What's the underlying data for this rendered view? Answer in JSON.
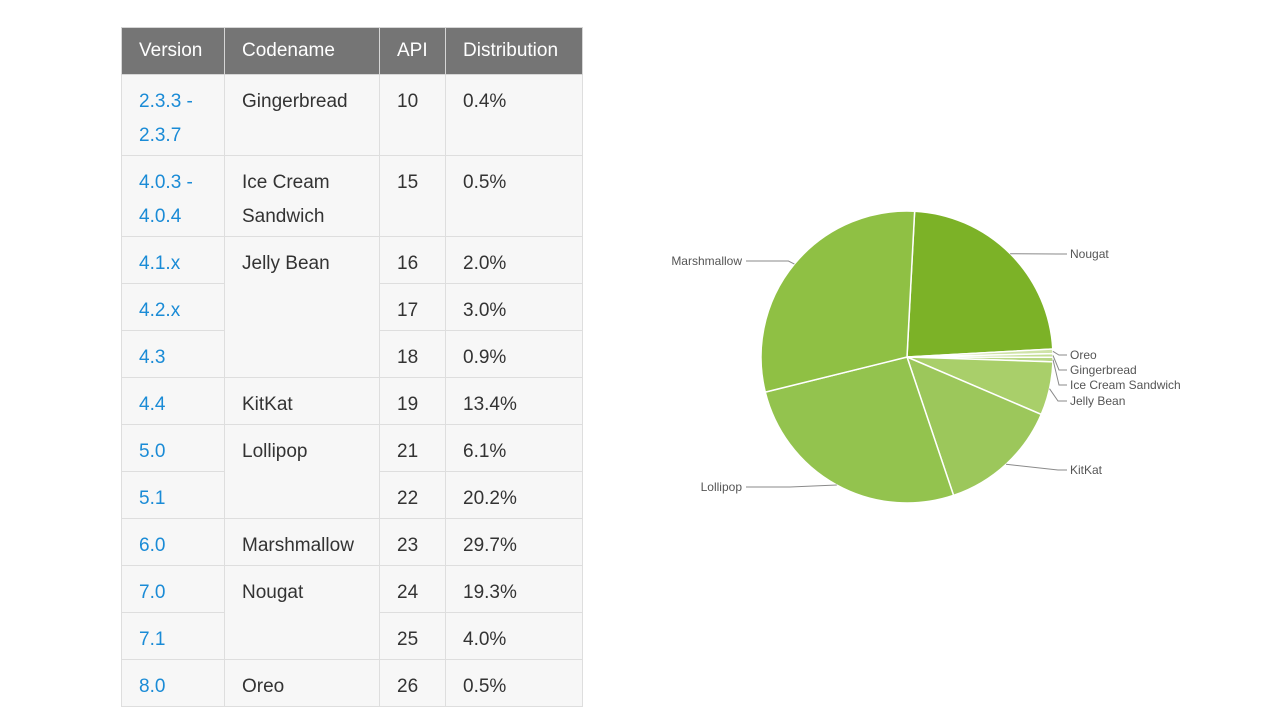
{
  "table": {
    "headers": [
      "Version",
      "Codename",
      "API",
      "Distribution"
    ],
    "rows": [
      {
        "version_lines": [
          "2.3.3 -",
          "2.3.7"
        ],
        "codename_lines": [
          "Gingerbread"
        ],
        "api": "10",
        "distribution": "0.4%"
      },
      {
        "version_lines": [
          "4.0.3 -",
          "4.0.4"
        ],
        "codename_lines": [
          "Ice Cream",
          "Sandwich"
        ],
        "api": "15",
        "distribution": "0.5%"
      },
      {
        "version_lines": [
          "4.1.x"
        ],
        "codename_lines": [
          "Jelly Bean"
        ],
        "api": "16",
        "distribution": "2.0%"
      },
      {
        "version_lines": [
          "4.2.x"
        ],
        "api": "17",
        "distribution": "3.0%"
      },
      {
        "version_lines": [
          "4.3"
        ],
        "api": "18",
        "distribution": "0.9%"
      },
      {
        "version_lines": [
          "4.4"
        ],
        "codename_lines": [
          "KitKat"
        ],
        "api": "19",
        "distribution": "13.4%"
      },
      {
        "version_lines": [
          "5.0"
        ],
        "codename_lines": [
          "Lollipop"
        ],
        "api": "21",
        "distribution": "6.1%"
      },
      {
        "version_lines": [
          "5.1"
        ],
        "api": "22",
        "distribution": "20.2%"
      },
      {
        "version_lines": [
          "6.0"
        ],
        "codename_lines": [
          "Marshmallow"
        ],
        "api": "23",
        "distribution": "29.7%"
      },
      {
        "version_lines": [
          "7.0"
        ],
        "codename_lines": [
          "Nougat"
        ],
        "api": "24",
        "distribution": "19.3%"
      },
      {
        "version_lines": [
          "7.1"
        ],
        "api": "25",
        "distribution": "4.0%"
      },
      {
        "version_lines": [
          "8.0"
        ],
        "codename_lines": [
          "Oreo"
        ],
        "api": "26",
        "distribution": "0.5%"
      }
    ]
  },
  "chart_data": {
    "type": "pie",
    "slices": [
      {
        "label": "Nougat",
        "value": 23.3,
        "color": "#7cb227"
      },
      {
        "label": "Oreo",
        "value": 0.5,
        "color": "#cfe3a8"
      },
      {
        "label": "Gingerbread",
        "value": 0.4,
        "color": "#c4de94"
      },
      {
        "label": "Ice Cream Sandwich",
        "value": 0.5,
        "color": "#b9d886"
      },
      {
        "label": "Jelly Bean",
        "value": 5.9,
        "color": "#a9cf6a"
      },
      {
        "label": "KitKat",
        "value": 13.4,
        "color": "#9cc75b"
      },
      {
        "label": "Lollipop",
        "value": 26.3,
        "color": "#93c34e"
      },
      {
        "label": "Marshmallow",
        "value": 29.7,
        "color": "#8fc044"
      }
    ]
  }
}
